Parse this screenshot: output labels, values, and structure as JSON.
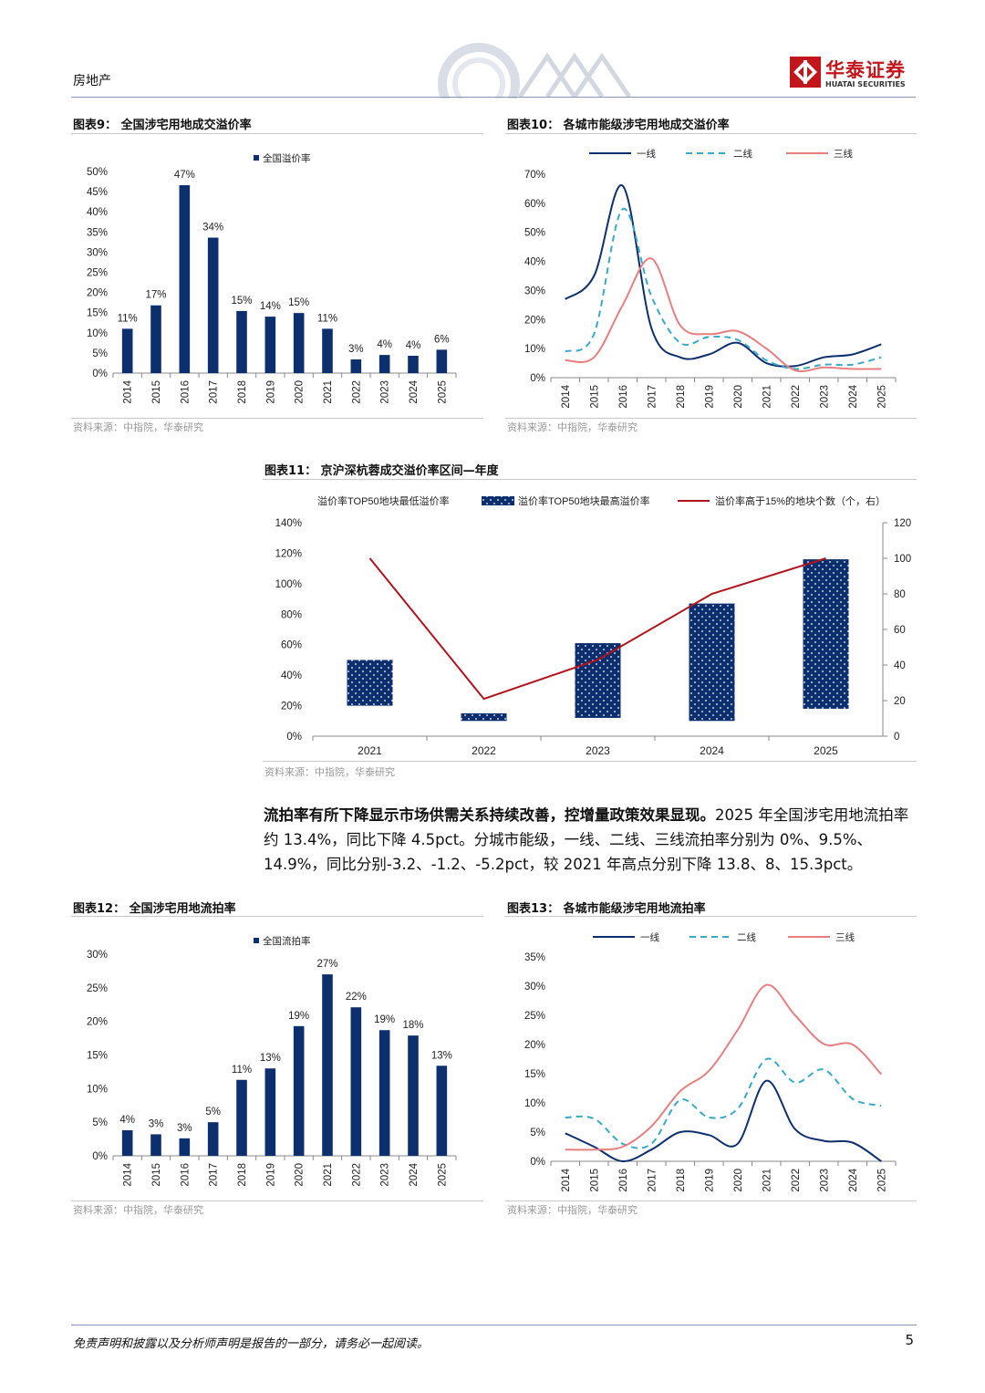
{
  "header": {
    "section": "房地产",
    "logo_cn": "华泰证券",
    "logo_en": "HUATAI SECURITIES",
    "brand_color": "#c3161c"
  },
  "source_note": "资料来源：中指院，华泰研究",
  "para": {
    "bold": "流拍率有所下降显示市场供需关系持续改善，控增量政策效果显现。",
    "rest": "2025 年全国涉宅用地流拍率约 13.4%，同比下降 4.5pct。分城市能级，一线、二线、三线流拍率分别为 0%、9.5%、14.9%，同比分别-3.2、-1.2、-5.2pct，较 2021 年高点分别下降 13.8、8、15.3pct。"
  },
  "footer": {
    "disclaimer": "免责声明和披露以及分析师声明是报告的一部分，请务必一起阅读。",
    "page": "5"
  },
  "chart_data": [
    {
      "id": "fig9",
      "type": "bar",
      "title": "图表9：  全国涉宅用地成交溢价率",
      "legend": [
        "全国溢价率"
      ],
      "categories": [
        "2014",
        "2015",
        "2016",
        "2017",
        "2018",
        "2019",
        "2020",
        "2021",
        "2022",
        "2023",
        "2024",
        "2025"
      ],
      "values": [
        11,
        17,
        47,
        34,
        15,
        14,
        15,
        11,
        3,
        4,
        4,
        6
      ],
      "value_labels": [
        "11%",
        "17%",
        "47%",
        "34%",
        "15%",
        "14%",
        "15%",
        "11%",
        "3%",
        "4%",
        "4%",
        "6%"
      ],
      "plot_values": [
        11,
        16.8,
        46.6,
        33.6,
        15.4,
        14,
        14.9,
        11,
        3.4,
        4.5,
        4.3,
        5.8
      ],
      "ylim": [
        0,
        50
      ],
      "yticks": [
        "0%",
        "5%",
        "10%",
        "15%",
        "20%",
        "25%",
        "30%",
        "35%",
        "40%",
        "45%",
        "50%"
      ],
      "color": "#0d2f6e"
    },
    {
      "id": "fig10",
      "type": "line",
      "title": "图表10：  各城市能级涉宅用地成交溢价率",
      "categories": [
        "2014",
        "2015",
        "2016",
        "2017",
        "2018",
        "2019",
        "2020",
        "2021",
        "2022",
        "2023",
        "2024",
        "2025"
      ],
      "series": [
        {
          "name": "一线",
          "values": [
            27,
            35,
            66,
            17,
            7,
            8,
            12,
            5,
            4,
            7,
            8,
            11.5
          ],
          "color": "#0d2f6e",
          "dash": ""
        },
        {
          "name": "二线",
          "values": [
            9,
            15,
            58,
            28,
            12,
            14,
            13,
            6,
            3,
            4.5,
            4.5,
            7
          ],
          "color": "#3aa9c8",
          "dash": "7,5"
        },
        {
          "name": "三线",
          "values": [
            6,
            7,
            25,
            41,
            18,
            15,
            16,
            10,
            2.5,
            3.5,
            3,
            3
          ],
          "color": "#e77f80",
          "dash": ""
        }
      ],
      "ylim": [
        0,
        70
      ],
      "yticks": [
        "0%",
        "10%",
        "20%",
        "30%",
        "40%",
        "50%",
        "60%",
        "70%"
      ]
    },
    {
      "id": "fig11",
      "type": "bar",
      "title": "图表11：  京沪深杭蓉成交溢价率区间—年度",
      "legend": [
        "溢价率TOP50地块最低溢价率",
        "溢价率TOP50地块最高溢价率",
        "溢价率高于15%的地块个数（个，右）"
      ],
      "categories": [
        "2021",
        "2022",
        "2023",
        "2024",
        "2025"
      ],
      "range_low": [
        20,
        10,
        12,
        10,
        18
      ],
      "range_high": [
        50,
        15,
        61,
        87,
        116
      ],
      "count_right_axis": [
        100,
        21,
        43,
        80,
        100
      ],
      "ylim": [
        0,
        140
      ],
      "ylim_right": [
        0,
        120
      ],
      "yticks": [
        "0%",
        "20%",
        "40%",
        "60%",
        "80%",
        "100%",
        "120%",
        "140%"
      ],
      "yticks_right": [
        "0",
        "20",
        "40",
        "60",
        "80",
        "100",
        "120"
      ],
      "bar_color": "#0d2f6e",
      "line_color": "#b0141d"
    },
    {
      "id": "fig12",
      "type": "bar",
      "title": "图表12：  全国涉宅用地流拍率",
      "legend": [
        "全国流拍率"
      ],
      "categories": [
        "2014",
        "2015",
        "2016",
        "2017",
        "2018",
        "2019",
        "2020",
        "2021",
        "2022",
        "2023",
        "2024",
        "2025"
      ],
      "values": [
        4,
        3,
        3,
        5,
        11,
        13,
        19,
        27,
        22,
        19,
        18,
        13
      ],
      "value_labels": [
        "4%",
        "3%",
        "3%",
        "5%",
        "11%",
        "13%",
        "19%",
        "27%",
        "22%",
        "19%",
        "18%",
        "13%"
      ],
      "plot_values": [
        3.8,
        3.2,
        2.6,
        5,
        11.3,
        13,
        19.3,
        27,
        22.1,
        18.7,
        17.9,
        13.4
      ],
      "ylim": [
        0,
        30
      ],
      "yticks": [
        "0%",
        "5%",
        "10%",
        "15%",
        "20%",
        "25%",
        "30%"
      ],
      "color": "#0d2f6e"
    },
    {
      "id": "fig13",
      "type": "line",
      "title": "图表13：  各城市能级涉宅用地流拍率",
      "categories": [
        "2014",
        "2015",
        "2016",
        "2017",
        "2018",
        "2019",
        "2020",
        "2021",
        "2022",
        "2023",
        "2024",
        "2025"
      ],
      "series": [
        {
          "name": "一线",
          "values": [
            4.8,
            2.5,
            0,
            2,
            5,
            4.5,
            3,
            13.8,
            5.5,
            3.5,
            3.2,
            0
          ],
          "color": "#0d2f6e",
          "dash": ""
        },
        {
          "name": "二线",
          "values": [
            7.5,
            7.3,
            3,
            3,
            10.5,
            7.5,
            9,
            17.5,
            13.5,
            15.7,
            10.7,
            9.5
          ],
          "color": "#3aa9c8",
          "dash": "7,5"
        },
        {
          "name": "三线",
          "values": [
            2,
            2,
            2.5,
            6,
            12,
            15.5,
            22.5,
            30.2,
            25,
            20.1,
            20,
            14.9
          ],
          "color": "#e77f80",
          "dash": ""
        }
      ],
      "ylim": [
        0,
        35
      ],
      "yticks": [
        "0%",
        "5%",
        "10%",
        "15%",
        "20%",
        "25%",
        "30%",
        "35%"
      ]
    }
  ]
}
